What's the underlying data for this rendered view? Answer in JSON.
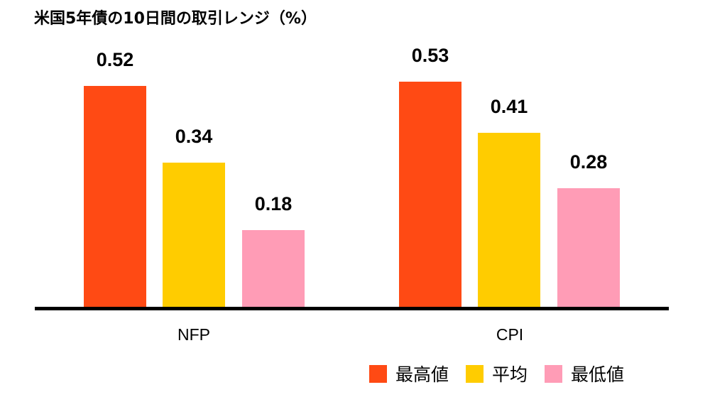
{
  "title": "米国5年債の10日間の取引レンジ（%）",
  "chart_data": {
    "type": "bar",
    "title": "米国5年債の10日間の取引レンジ（%）",
    "xlabel": "",
    "ylabel": "",
    "categories": [
      "NFP",
      "CPI"
    ],
    "series": [
      {
        "name": "最高値",
        "color": "#FF4A14",
        "values": [
          0.52,
          0.53
        ]
      },
      {
        "name": "平均",
        "color": "#FFCC00",
        "values": [
          0.34,
          0.41
        ]
      },
      {
        "name": "最低値",
        "color": "#FF9CB6",
        "values": [
          0.18,
          0.28
        ]
      }
    ],
    "value_labels": [
      [
        "0.52",
        "0.53"
      ],
      [
        "0.34",
        "0.41"
      ],
      [
        "0.18",
        "0.28"
      ]
    ],
    "grid": false,
    "legend_position": "bottom-right"
  },
  "legend": [
    {
      "label": "最高値",
      "color": "#FF4A14"
    },
    {
      "label": "平均",
      "color": "#FFCC00"
    },
    {
      "label": "最低値",
      "color": "#FF9CB6"
    }
  ]
}
